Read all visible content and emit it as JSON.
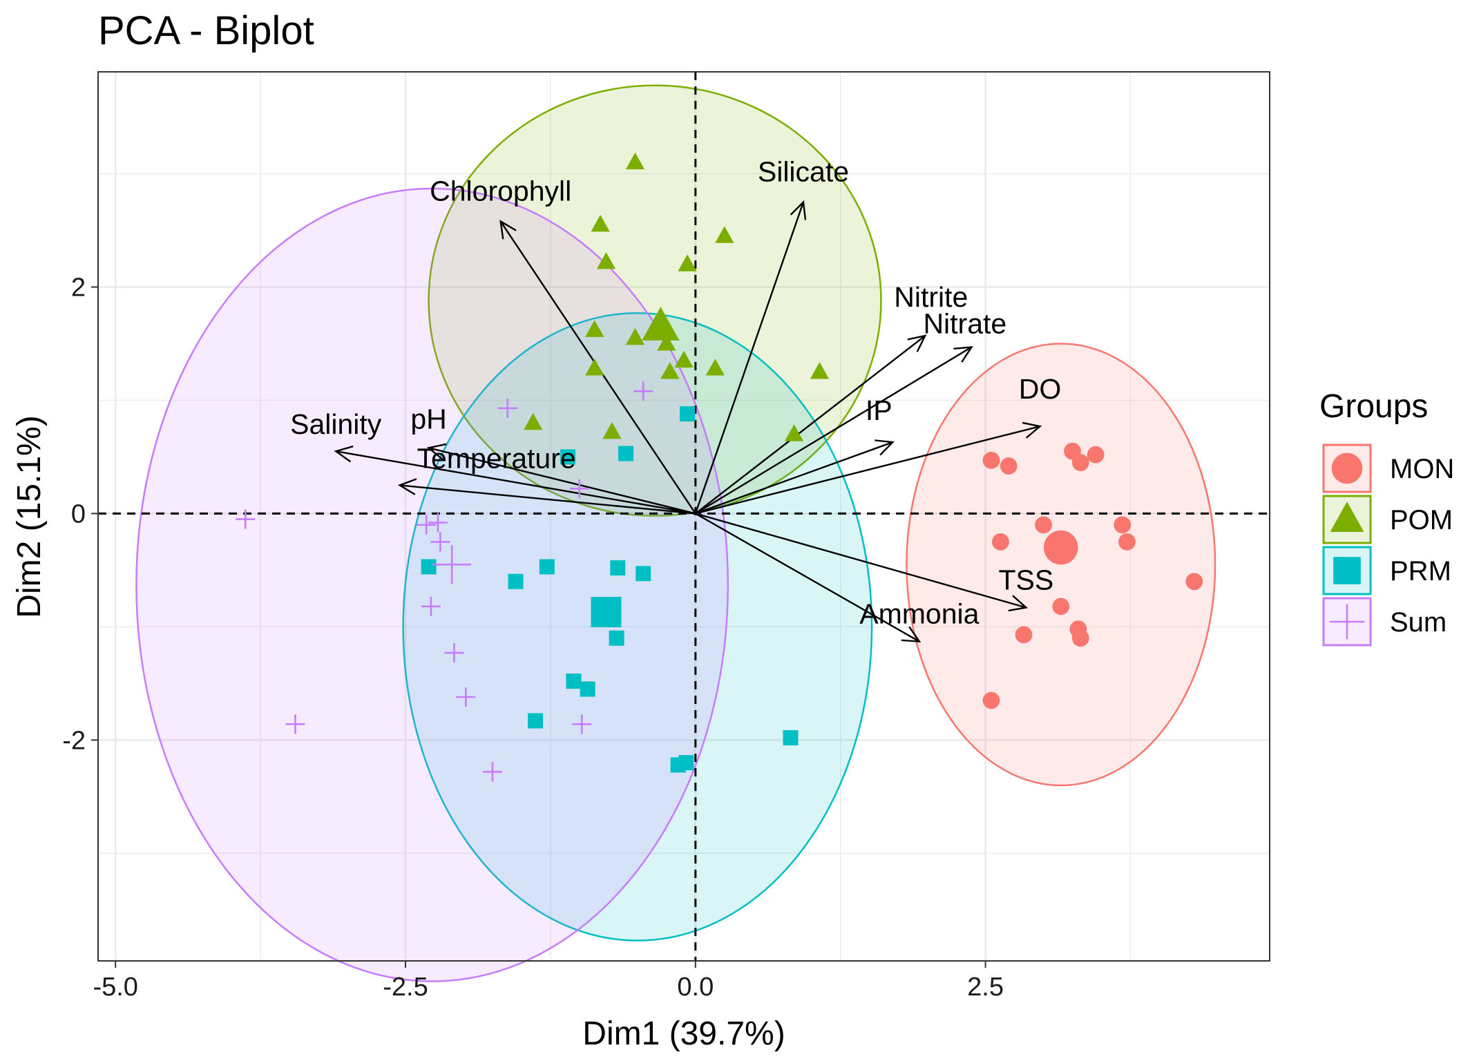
{
  "chart_data": {
    "type": "scatter",
    "title": "PCA - Biplot",
    "xlabel": "Dim1 (39.7%)",
    "ylabel": "Dim2 (15.1%)",
    "xlim": [
      -5.15,
      4.95
    ],
    "ylim": [
      -3.95,
      3.9
    ],
    "xticks": [
      -5.0,
      -2.5,
      0.0,
      2.5
    ],
    "xtick_labels": [
      "-5.0",
      "-2.5",
      "0.0",
      "2.5"
    ],
    "yticks": [
      -2,
      0,
      2
    ],
    "ytick_labels": [
      "-2",
      "0",
      "2"
    ],
    "grid": true,
    "reference_lines": {
      "x": 0,
      "y": 0,
      "style": "dashed"
    },
    "legend": {
      "title": "Groups",
      "position": "right"
    },
    "groups": [
      {
        "name": "MON",
        "color": "#F8766D",
        "marker": "circle",
        "centroid": [
          3.15,
          -0.3
        ],
        "ellipse": {
          "cx": 3.15,
          "cy": -0.45,
          "rx": 1.33,
          "ry": 1.95
        },
        "points": [
          [
            2.55,
            0.47
          ],
          [
            2.7,
            0.42
          ],
          [
            3.25,
            0.55
          ],
          [
            3.32,
            0.45
          ],
          [
            3.45,
            0.52
          ],
          [
            2.63,
            -0.25
          ],
          [
            3.0,
            -0.1
          ],
          [
            3.68,
            -0.1
          ],
          [
            3.72,
            -0.25
          ],
          [
            4.3,
            -0.6
          ],
          [
            3.15,
            -0.82
          ],
          [
            2.83,
            -1.07
          ],
          [
            3.3,
            -1.02
          ],
          [
            3.32,
            -1.1
          ],
          [
            2.55,
            -1.65
          ]
        ]
      },
      {
        "name": "POM",
        "color": "#7CAE00",
        "marker": "triangle",
        "centroid": [
          -0.3,
          1.65
        ],
        "ellipse": {
          "cx": -0.35,
          "cy": 1.88,
          "rx": 1.95,
          "ry": 1.9
        },
        "points": [
          [
            -0.52,
            3.1
          ],
          [
            -0.82,
            2.55
          ],
          [
            0.25,
            2.45
          ],
          [
            -0.77,
            2.22
          ],
          [
            -0.07,
            2.2
          ],
          [
            -0.87,
            1.62
          ],
          [
            -0.52,
            1.55
          ],
          [
            -0.25,
            1.5
          ],
          [
            -0.1,
            1.35
          ],
          [
            -0.22,
            1.25
          ],
          [
            -0.87,
            1.28
          ],
          [
            0.17,
            1.28
          ],
          [
            1.07,
            1.25
          ],
          [
            -1.4,
            0.8
          ],
          [
            -0.72,
            0.72
          ],
          [
            0.85,
            0.7
          ]
        ]
      },
      {
        "name": "PRM",
        "color": "#00BFC4",
        "marker": "square",
        "centroid": [
          -0.77,
          -0.87
        ],
        "ellipse": {
          "cx": -0.5,
          "cy": -1.0,
          "rx": 2.02,
          "ry": 2.77
        },
        "points": [
          [
            -0.07,
            0.88
          ],
          [
            -1.1,
            0.5
          ],
          [
            -0.6,
            0.53
          ],
          [
            -2.3,
            -0.47
          ],
          [
            -1.28,
            -0.47
          ],
          [
            -0.67,
            -0.48
          ],
          [
            -0.45,
            -0.53
          ],
          [
            -1.55,
            -0.6
          ],
          [
            -0.68,
            -1.1
          ],
          [
            -1.05,
            -1.48
          ],
          [
            -0.93,
            -1.55
          ],
          [
            -1.38,
            -1.83
          ],
          [
            0.82,
            -1.98
          ],
          [
            -0.15,
            -2.22
          ],
          [
            -0.08,
            -2.2
          ]
        ]
      },
      {
        "name": "Sum",
        "color": "#C77CFF",
        "marker": "plus",
        "centroid": [
          -2.1,
          -0.45
        ],
        "ellipse": {
          "cx": -2.27,
          "cy": -0.63,
          "rx": 2.55,
          "ry": 3.5
        },
        "points": [
          [
            -1.62,
            0.93
          ],
          [
            -0.45,
            1.08
          ],
          [
            -3.88,
            -0.05
          ],
          [
            -2.32,
            -0.1
          ],
          [
            -2.22,
            -0.08
          ],
          [
            -2.2,
            -0.25
          ],
          [
            -2.28,
            -0.82
          ],
          [
            -2.08,
            -1.23
          ],
          [
            -1.98,
            -1.62
          ],
          [
            -3.45,
            -1.86
          ],
          [
            -0.98,
            -1.86
          ],
          [
            -1.75,
            -2.28
          ],
          [
            -1.0,
            0.22
          ]
        ]
      }
    ],
    "arrows": [
      {
        "name": "Chlorophyll",
        "x": -1.68,
        "y": 2.58
      },
      {
        "name": "Silicate",
        "x": 0.93,
        "y": 2.75
      },
      {
        "name": "Nitrite",
        "x": 1.98,
        "y": 1.57
      },
      {
        "name": "Nitrate",
        "x": 2.38,
        "y": 1.47
      },
      {
        "name": "IP",
        "x": 1.7,
        "y": 0.63
      },
      {
        "name": "DO",
        "x": 2.97,
        "y": 0.77
      },
      {
        "name": "Salinity",
        "x": -3.1,
        "y": 0.55
      },
      {
        "name": "pH",
        "x": -2.3,
        "y": 0.58
      },
      {
        "name": "Temperature",
        "x": -2.55,
        "y": 0.25
      },
      {
        "name": "TSS",
        "x": 2.85,
        "y": -0.83
      },
      {
        "name": "Ammonia",
        "x": 1.93,
        "y": -1.13
      }
    ]
  }
}
